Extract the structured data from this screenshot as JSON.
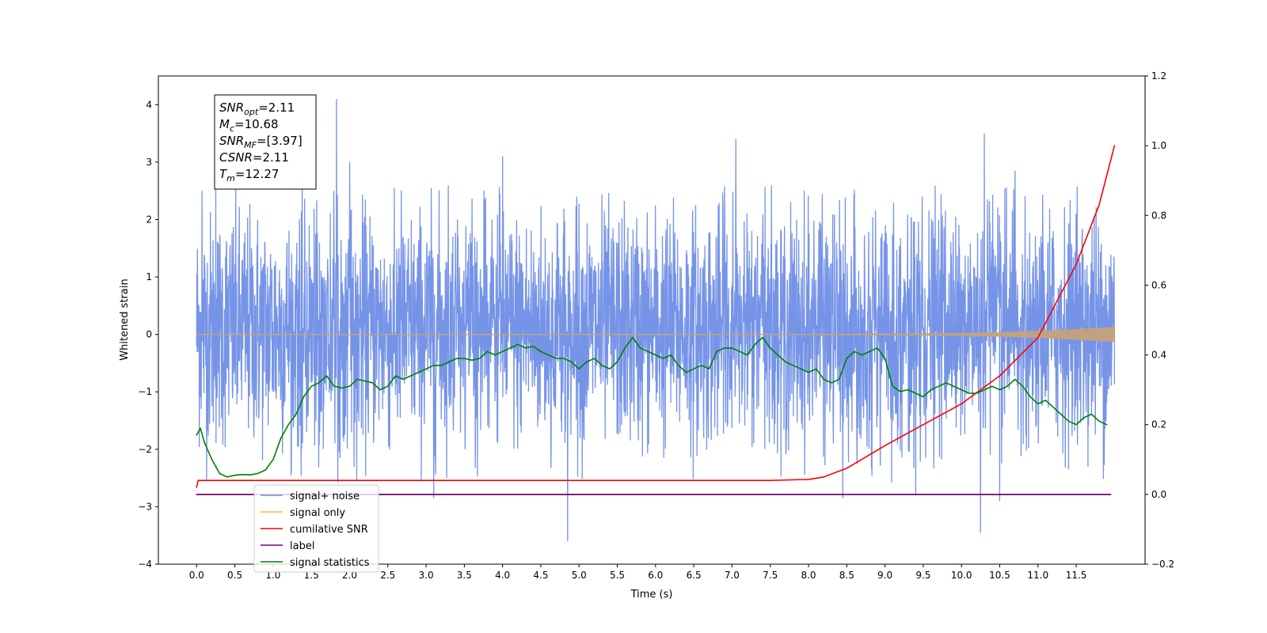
{
  "chart_data": {
    "type": "line",
    "title": "",
    "xlabel": "Time (s)",
    "ylabel": "Whitened strain",
    "y2label": "",
    "xlim": [
      -0.5,
      12.4
    ],
    "ylim": [
      -4,
      4.5
    ],
    "y2lim": [
      -0.2,
      1.2
    ],
    "x_ticks": [
      "0.0",
      "0.5",
      "1.0",
      "1.5",
      "2.0",
      "2.5",
      "3.0",
      "3.5",
      "4.0",
      "4.5",
      "5.0",
      "5.5",
      "6.0",
      "6.5",
      "7.0",
      "7.5",
      "8.0",
      "8.5",
      "9.0",
      "9.5",
      "10.0",
      "10.5",
      "11.0",
      "11.5"
    ],
    "y_ticks": [
      "4",
      "3",
      "2",
      "1",
      "0",
      "−1",
      "−2",
      "−3",
      "−4"
    ],
    "y2_ticks": [
      "1.2",
      "1.0",
      "0.8",
      "0.6",
      "0.4",
      "0.2",
      "0.0",
      "−0.2"
    ],
    "grid": false,
    "legend_position": "lower-left",
    "annotation": {
      "lines": [
        {
          "base": "SNR",
          "sub": "opt",
          "value": "=2.11"
        },
        {
          "base": "M",
          "sub": "c",
          "value": "=10.68"
        },
        {
          "base": "SNR",
          "sub": "MF",
          "value": "=[3.97]"
        },
        {
          "base": "CSNR",
          "sub": "",
          "value": "=2.11"
        },
        {
          "base": "T",
          "sub": "m",
          "value": "=12.27"
        }
      ]
    },
    "series": [
      {
        "name": "signal+ noise",
        "color": "#6f8ee6",
        "axis": "left",
        "x_range": [
          0.0,
          12.0
        ],
        "spike_peaks": [
          {
            "x": 1.83,
            "y": 4.1
          },
          {
            "x": 2.0,
            "y": 3.0
          },
          {
            "x": 4.0,
            "y": 3.1
          },
          {
            "x": 7.05,
            "y": 3.4
          },
          {
            "x": 10.3,
            "y": 3.5
          },
          {
            "x": 0.07,
            "y": 2.5
          },
          {
            "x": 0.25,
            "y": 2.55
          },
          {
            "x": 10.7,
            "y": 2.85
          },
          {
            "x": 11.5,
            "y": 2.1
          }
        ],
        "spike_troughs": [
          {
            "x": 4.85,
            "y": -3.6
          },
          {
            "x": 10.25,
            "y": -3.45
          },
          {
            "x": 3.1,
            "y": -2.85
          },
          {
            "x": 8.45,
            "y": -2.85
          },
          {
            "x": 10.5,
            "y": -2.9
          },
          {
            "x": 9.4,
            "y": -2.8
          }
        ]
      },
      {
        "name": "signal only",
        "color": "#ffb84a",
        "axis": "left",
        "x": [
          0.0,
          8.0,
          9.0,
          10.0,
          10.5,
          11.0,
          11.5,
          12.0
        ],
        "envelope": [
          0.0,
          0.0,
          0.005,
          0.015,
          0.03,
          0.05,
          0.08,
          0.12
        ]
      },
      {
        "name": "cumilative SNR",
        "color": "#ff0000",
        "axis": "right",
        "x": [
          0.0,
          0.02,
          1.0,
          3.0,
          5.0,
          7.0,
          7.5,
          8.0,
          8.2,
          8.5,
          9.0,
          9.5,
          10.0,
          10.5,
          11.0,
          11.5,
          11.8,
          12.0
        ],
        "values": [
          0.02,
          0.04,
          0.04,
          0.04,
          0.04,
          0.04,
          0.04,
          0.043,
          0.05,
          0.075,
          0.14,
          0.2,
          0.26,
          0.34,
          0.45,
          0.66,
          0.83,
          1.0
        ]
      },
      {
        "name": "label",
        "color": "#750075",
        "axis": "right",
        "x": [
          0.0,
          11.95
        ],
        "values": [
          0.0,
          0.0
        ]
      },
      {
        "name": "signal statistics",
        "color": "#008000",
        "axis": "right",
        "x": [
          0.0,
          0.05,
          0.1,
          0.2,
          0.3,
          0.4,
          0.5,
          0.6,
          0.7,
          0.8,
          0.9,
          1.0,
          1.1,
          1.2,
          1.3,
          1.4,
          1.5,
          1.6,
          1.7,
          1.8,
          1.9,
          2.0,
          2.1,
          2.2,
          2.3,
          2.4,
          2.5,
          2.6,
          2.7,
          2.8,
          2.9,
          3.0,
          3.1,
          3.2,
          3.3,
          3.4,
          3.5,
          3.6,
          3.7,
          3.8,
          3.9,
          4.0,
          4.1,
          4.2,
          4.3,
          4.4,
          4.5,
          4.6,
          4.7,
          4.8,
          4.9,
          5.0,
          5.1,
          5.2,
          5.3,
          5.4,
          5.5,
          5.6,
          5.7,
          5.8,
          5.9,
          6.0,
          6.1,
          6.2,
          6.3,
          6.4,
          6.5,
          6.6,
          6.7,
          6.8,
          6.9,
          7.0,
          7.1,
          7.2,
          7.3,
          7.4,
          7.5,
          7.6,
          7.7,
          7.8,
          7.9,
          8.0,
          8.1,
          8.2,
          8.3,
          8.4,
          8.5,
          8.6,
          8.7,
          8.8,
          8.9,
          9.0,
          9.1,
          9.2,
          9.3,
          9.4,
          9.5,
          9.6,
          9.7,
          9.8,
          9.9,
          10.0,
          10.1,
          10.2,
          10.3,
          10.4,
          10.5,
          10.6,
          10.7,
          10.8,
          10.9,
          11.0,
          11.1,
          11.2,
          11.3,
          11.4,
          11.5,
          11.6,
          11.7,
          11.8,
          11.9
        ],
        "values": [
          0.17,
          0.19,
          0.15,
          0.1,
          0.06,
          0.05,
          0.055,
          0.057,
          0.056,
          0.06,
          0.07,
          0.1,
          0.16,
          0.2,
          0.23,
          0.28,
          0.31,
          0.32,
          0.34,
          0.31,
          0.305,
          0.31,
          0.33,
          0.325,
          0.32,
          0.3,
          0.31,
          0.34,
          0.33,
          0.34,
          0.35,
          0.36,
          0.37,
          0.37,
          0.38,
          0.39,
          0.39,
          0.385,
          0.39,
          0.41,
          0.4,
          0.41,
          0.42,
          0.43,
          0.42,
          0.425,
          0.41,
          0.4,
          0.39,
          0.39,
          0.38,
          0.36,
          0.38,
          0.39,
          0.37,
          0.36,
          0.38,
          0.42,
          0.45,
          0.42,
          0.41,
          0.4,
          0.39,
          0.4,
          0.37,
          0.35,
          0.36,
          0.37,
          0.36,
          0.41,
          0.42,
          0.42,
          0.41,
          0.4,
          0.43,
          0.45,
          0.42,
          0.4,
          0.38,
          0.37,
          0.36,
          0.35,
          0.36,
          0.33,
          0.32,
          0.33,
          0.39,
          0.41,
          0.4,
          0.41,
          0.42,
          0.39,
          0.31,
          0.295,
          0.3,
          0.29,
          0.28,
          0.3,
          0.31,
          0.32,
          0.31,
          0.3,
          0.29,
          0.29,
          0.3,
          0.31,
          0.3,
          0.31,
          0.33,
          0.31,
          0.28,
          0.26,
          0.27,
          0.25,
          0.23,
          0.21,
          0.2,
          0.22,
          0.23,
          0.21,
          0.2
        ]
      }
    ]
  }
}
